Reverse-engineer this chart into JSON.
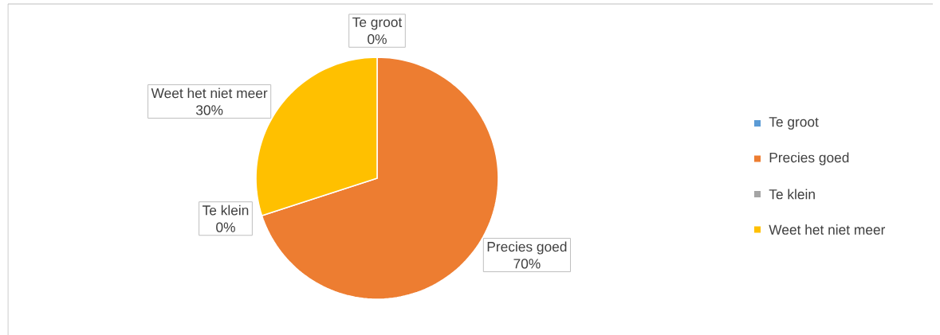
{
  "chart_data": {
    "type": "pie",
    "categories": [
      "Te groot",
      "Precies goed",
      "Te klein",
      "Weet het niet meer"
    ],
    "values": [
      0,
      70,
      0,
      30
    ],
    "value_labels": [
      "0%",
      "70%",
      "0%",
      "30%"
    ],
    "colors": [
      "#5b9bd5",
      "#ed7d31",
      "#a5a5a5",
      "#ffc000"
    ],
    "legend": "right"
  }
}
